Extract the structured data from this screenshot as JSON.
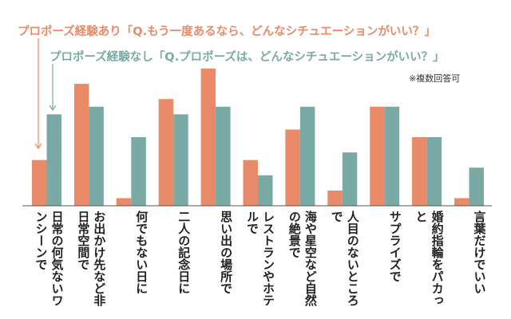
{
  "chart_data": {
    "type": "bar",
    "note": "※複数回答可",
    "categories": [
      "日常の何気ないワンシーンで",
      "お出かけ先など非日常空間で",
      "何でもない日に",
      "二人の記念日に",
      "思い出の場所で",
      "レストランやホテルで",
      "海や星空など自然の絶景で",
      "人目のないところで",
      "サプライズで",
      "婚約指輪をパカっと",
      "言葉だけでいい"
    ],
    "series": [
      {
        "name": "プロポーズ経験あり「Q.もう一度あるなら、どんなシチュエーションがいい？」",
        "color": "#e98a69",
        "values": [
          6,
          16,
          1,
          14,
          18,
          6,
          10,
          2,
          13,
          9,
          1
        ]
      },
      {
        "name": "プロポーズ経験なし「Q.プロポーズは、どんなシチュエーションがいい？」",
        "color": "#7aaaa5",
        "values": [
          12,
          13,
          9,
          12,
          13,
          4,
          13,
          7,
          13,
          9,
          5
        ]
      }
    ]
  }
}
